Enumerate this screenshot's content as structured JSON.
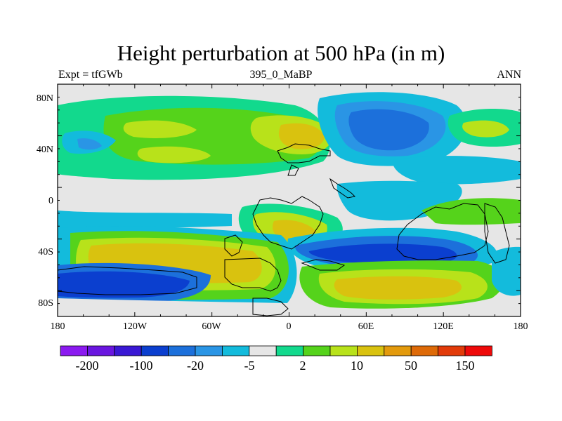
{
  "title": "Height perturbation at 500 hPa (in m)",
  "subtitle_left": "Expt = tfGWb",
  "subtitle_center": "395_0_MaBP",
  "subtitle_right": "ANN",
  "y_axis": {
    "ticks": [
      "80N",
      "40N",
      "0",
      "40S",
      "80S"
    ]
  },
  "x_axis": {
    "ticks": [
      "180",
      "120W",
      "60W",
      "0",
      "60E",
      "120E",
      "180"
    ]
  },
  "colorbar": {
    "colors": [
      "#8B1AF0",
      "#6A16E0",
      "#3A18D4",
      "#0B3FCF",
      "#1C70DB",
      "#2A95E5",
      "#13BBDC",
      "#E6E6E6",
      "#12D98D",
      "#55D31B",
      "#B8E21A",
      "#D9C20F",
      "#E39A0C",
      "#DE6A08",
      "#E23B0A",
      "#EE0A0A"
    ],
    "labels": [
      "-200",
      "-100",
      "-20",
      "-5",
      "2",
      "10",
      "50",
      "150"
    ]
  },
  "colors": {
    "land_outline": "#000000",
    "background_neutral": "#E6E6E6"
  }
}
